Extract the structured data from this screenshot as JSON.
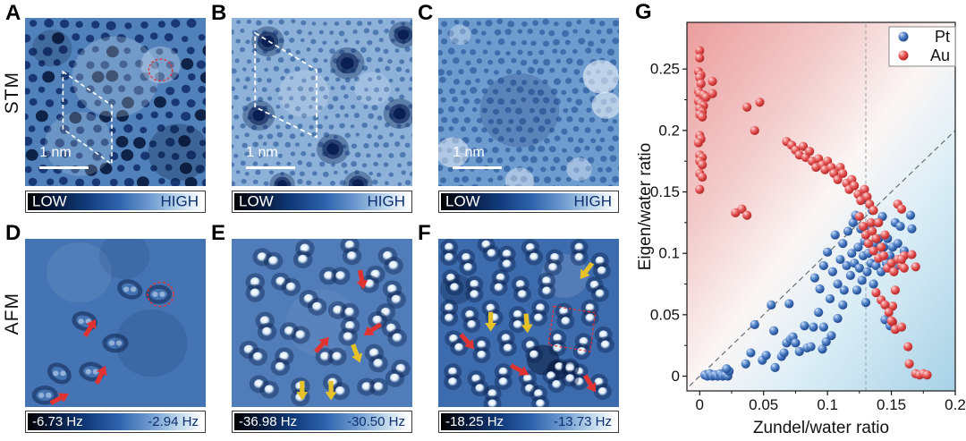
{
  "rows": {
    "stm_label": "STM",
    "afm_label": "AFM"
  },
  "panels": {
    "A": {
      "letter": "A",
      "scalebar_label": "1 nm",
      "colorbar_left": "LOW",
      "colorbar_right": "HIGH"
    },
    "B": {
      "letter": "B",
      "scalebar_label": "1 nm",
      "colorbar_left": "LOW",
      "colorbar_right": "HIGH"
    },
    "C": {
      "letter": "C",
      "scalebar_label": "1 nm",
      "colorbar_left": "LOW",
      "colorbar_right": "HIGH"
    },
    "D": {
      "letter": "D",
      "colorbar_left": "-6.73 Hz",
      "colorbar_right": "-2.94 Hz"
    },
    "E": {
      "letter": "E",
      "colorbar_left": "-36.98 Hz",
      "colorbar_right": "-30.50 Hz"
    },
    "F": {
      "letter": "F",
      "colorbar_left": "-18.25 Hz",
      "colorbar_right": "-13.73 Hz"
    },
    "G": {
      "letter": "G"
    }
  },
  "annotation_colors": {
    "red_dashed": "#e23333",
    "yellow_arrow": "#e6c22a",
    "white_dashed": "#ffffff"
  },
  "chart_data": {
    "type": "scatter",
    "xlabel": "Zundel/water ratio",
    "ylabel": "Eigen/water ratio",
    "xlim": [
      -0.01,
      0.2
    ],
    "ylim": [
      -0.012,
      0.288
    ],
    "xticks": [
      0,
      0.05,
      0.1,
      0.15,
      0.2
    ],
    "yticks": [
      0,
      0.05,
      0.1,
      0.15,
      0.2,
      0.25
    ],
    "grid": false,
    "reference_lines": {
      "vertical_x": 0.13,
      "diagonal": "y=x"
    },
    "background_gradient": [
      "#eb9d9d",
      "#fbf6f5",
      "#a7d1e6"
    ],
    "legend": {
      "position": "top-right",
      "entries": [
        {
          "name": "Pt",
          "color": "#3e6fb8"
        },
        {
          "name": "Au",
          "color": "#dd4545"
        }
      ]
    },
    "series": [
      {
        "name": "Pt",
        "color": "#3e6fb8",
        "points": [
          [
            0.004,
            0.001
          ],
          [
            0.006,
            0.0
          ],
          [
            0.008,
            0.002
          ],
          [
            0.01,
            0.0
          ],
          [
            0.012,
            0.001
          ],
          [
            0.014,
            0.0
          ],
          [
            0.016,
            0.002
          ],
          [
            0.018,
            0.0
          ],
          [
            0.02,
            0.001
          ],
          [
            0.022,
            0.0
          ],
          [
            0.023,
            0.004
          ],
          [
            0.021,
            0.006
          ],
          [
            0.036,
            0.01
          ],
          [
            0.04,
            0.019
          ],
          [
            0.043,
            0.042
          ],
          [
            0.049,
            0.013
          ],
          [
            0.052,
            0.017
          ],
          [
            0.056,
            0.058
          ],
          [
            0.058,
            0.037
          ],
          [
            0.059,
            0.007
          ],
          [
            0.064,
            0.016
          ],
          [
            0.066,
            0.019
          ],
          [
            0.068,
            0.027
          ],
          [
            0.07,
            0.059
          ],
          [
            0.071,
            0.03
          ],
          [
            0.073,
            0.032
          ],
          [
            0.075,
            0.027
          ],
          [
            0.078,
            0.02
          ],
          [
            0.082,
            0.041
          ],
          [
            0.084,
            0.023
          ],
          [
            0.087,
            0.024
          ],
          [
            0.089,
            0.04
          ],
          [
            0.093,
            0.052
          ],
          [
            0.096,
            0.022
          ],
          [
            0.097,
            0.04
          ],
          [
            0.099,
            0.028
          ],
          [
            0.103,
            0.033
          ],
          [
            0.108,
            0.047
          ],
          [
            0.112,
            0.058
          ],
          [
            0.145,
            0.046
          ],
          [
            0.149,
            0.041
          ],
          [
            0.09,
            0.08
          ],
          [
            0.094,
            0.071
          ],
          [
            0.097,
            0.09
          ],
          [
            0.1,
            0.101
          ],
          [
            0.102,
            0.063
          ],
          [
            0.104,
            0.085
          ],
          [
            0.106,
            0.115
          ],
          [
            0.108,
            0.075
          ],
          [
            0.11,
            0.095
          ],
          [
            0.112,
            0.108
          ],
          [
            0.113,
            0.07
          ],
          [
            0.115,
            0.09
          ],
          [
            0.116,
            0.118
          ],
          [
            0.118,
            0.082
          ],
          [
            0.119,
            0.1
          ],
          [
            0.12,
            0.125
          ],
          [
            0.121,
            0.092
          ],
          [
            0.122,
            0.131
          ],
          [
            0.123,
            0.07
          ],
          [
            0.124,
            0.105
          ],
          [
            0.125,
            0.088
          ],
          [
            0.126,
            0.12
          ],
          [
            0.127,
            0.078
          ],
          [
            0.128,
            0.098
          ],
          [
            0.129,
            0.144
          ],
          [
            0.129,
            0.11
          ],
          [
            0.13,
            0.06
          ],
          [
            0.131,
            0.085
          ],
          [
            0.132,
            0.1
          ],
          [
            0.133,
            0.122
          ],
          [
            0.134,
            0.092
          ],
          [
            0.135,
            0.135
          ],
          [
            0.136,
            0.075
          ],
          [
            0.137,
            0.108
          ],
          [
            0.138,
            0.09
          ],
          [
            0.139,
            0.125
          ],
          [
            0.14,
            0.112
          ],
          [
            0.141,
            0.098
          ],
          [
            0.142,
            0.085
          ],
          [
            0.143,
            0.13
          ],
          [
            0.144,
            0.105
          ],
          [
            0.146,
            0.092
          ],
          [
            0.147,
            0.112
          ],
          [
            0.149,
            0.098
          ],
          [
            0.151,
            0.105
          ],
          [
            0.153,
            0.125
          ],
          [
            0.153,
            0.089
          ],
          [
            0.155,
            0.108
          ],
          [
            0.157,
            0.122
          ],
          [
            0.16,
            0.102
          ],
          [
            0.165,
            0.131
          ],
          [
            0.166,
            0.12
          ]
        ]
      },
      {
        "name": "Au",
        "color": "#dd4545",
        "points": [
          [
            0.0,
            0.265
          ],
          [
            0.0,
            0.259
          ],
          [
            -0.001,
            0.248
          ],
          [
            0.001,
            0.245
          ],
          [
            0.0,
            0.243
          ],
          [
            0.001,
            0.238
          ],
          [
            -0.001,
            0.232
          ],
          [
            0.0,
            0.23
          ],
          [
            0.003,
            0.229
          ],
          [
            0.005,
            0.227
          ],
          [
            -0.001,
            0.224
          ],
          [
            0.001,
            0.222
          ],
          [
            0.003,
            0.22
          ],
          [
            0.0,
            0.218
          ],
          [
            0.002,
            0.215
          ],
          [
            0.0,
            0.213
          ],
          [
            0.002,
            0.211
          ],
          [
            0.01,
            0.24
          ],
          [
            0.01,
            0.23
          ],
          [
            0.0,
            0.196
          ],
          [
            0.001,
            0.193
          ],
          [
            -0.001,
            0.19
          ],
          [
            0.0,
            0.18
          ],
          [
            0.002,
            0.178
          ],
          [
            0.0,
            0.175
          ],
          [
            0.002,
            0.172
          ],
          [
            0.0,
            0.165
          ],
          [
            0.002,
            0.162
          ],
          [
            0.0,
            0.152
          ],
          [
            0.037,
            0.219
          ],
          [
            0.047,
            0.223
          ],
          [
            0.043,
            0.2
          ],
          [
            0.028,
            0.133
          ],
          [
            0.033,
            0.136
          ],
          [
            0.037,
            0.131
          ],
          [
            0.068,
            0.191
          ],
          [
            0.072,
            0.188
          ],
          [
            0.075,
            0.184
          ],
          [
            0.078,
            0.18
          ],
          [
            0.081,
            0.187
          ],
          [
            0.083,
            0.178
          ],
          [
            0.086,
            0.183
          ],
          [
            0.088,
            0.175
          ],
          [
            0.091,
            0.17
          ],
          [
            0.093,
            0.177
          ],
          [
            0.096,
            0.172
          ],
          [
            0.098,
            0.168
          ],
          [
            0.1,
            0.175
          ],
          [
            0.103,
            0.17
          ],
          [
            0.105,
            0.165
          ],
          [
            0.108,
            0.16
          ],
          [
            0.11,
            0.17
          ],
          [
            0.112,
            0.165
          ],
          [
            0.115,
            0.157
          ],
          [
            0.117,
            0.152
          ],
          [
            0.119,
            0.16
          ],
          [
            0.121,
            0.155
          ],
          [
            0.124,
            0.148
          ],
          [
            0.126,
            0.143
          ],
          [
            0.129,
            0.152
          ],
          [
            0.131,
            0.146
          ],
          [
            0.133,
            0.14
          ],
          [
            0.136,
            0.135
          ],
          [
            0.125,
            0.13
          ],
          [
            0.128,
            0.122
          ],
          [
            0.13,
            0.115
          ],
          [
            0.132,
            0.108
          ],
          [
            0.134,
            0.125
          ],
          [
            0.135,
            0.118
          ],
          [
            0.136,
            0.102
          ],
          [
            0.138,
            0.112
          ],
          [
            0.14,
            0.096
          ],
          [
            0.14,
            0.125
          ],
          [
            0.142,
            0.105
          ],
          [
            0.144,
            0.098
          ],
          [
            0.145,
            0.115
          ],
          [
            0.147,
            0.088
          ],
          [
            0.15,
            0.092
          ],
          [
            0.152,
            0.085
          ],
          [
            0.155,
            0.095
          ],
          [
            0.158,
            0.09
          ],
          [
            0.155,
            0.14
          ],
          [
            0.158,
            0.136
          ],
          [
            0.16,
            0.098
          ],
          [
            0.166,
            0.099
          ],
          [
            0.158,
            0.095
          ],
          [
            0.169,
            0.089
          ],
          [
            0.16,
            0.088
          ],
          [
            0.153,
            0.07
          ],
          [
            0.151,
            0.057
          ],
          [
            0.151,
            0.044
          ],
          [
            0.138,
            0.068
          ],
          [
            0.142,
            0.062
          ],
          [
            0.145,
            0.058
          ],
          [
            0.148,
            0.052
          ],
          [
            0.15,
            0.045
          ],
          [
            0.153,
            0.038
          ],
          [
            0.158,
            0.04
          ],
          [
            0.163,
            0.024
          ],
          [
            0.164,
            0.01
          ],
          [
            0.169,
            0.002
          ],
          [
            0.172,
            0.001
          ],
          [
            0.175,
            0.002
          ],
          [
            0.178,
            0.001
          ]
        ]
      }
    ]
  }
}
